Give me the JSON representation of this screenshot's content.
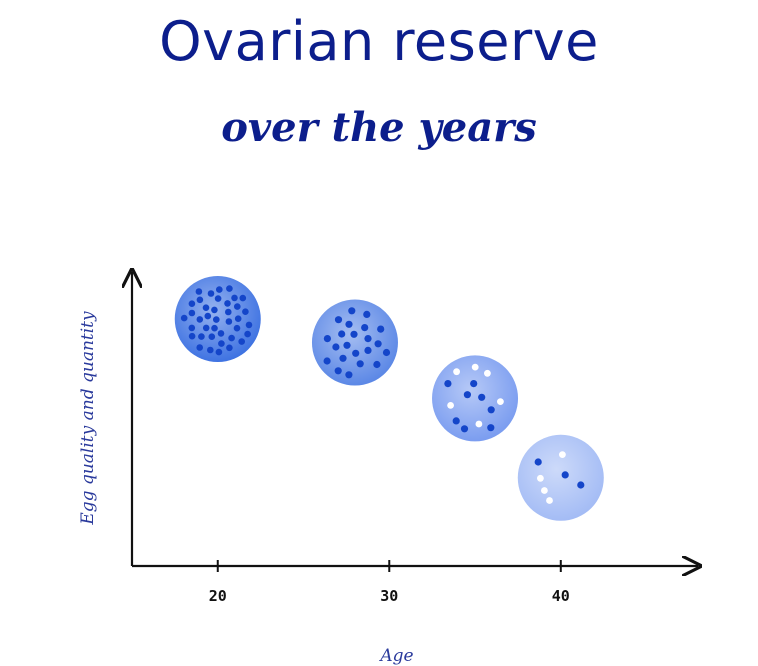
{
  "title": "Ovarian reserve",
  "subtitle": "over the years",
  "chart_data": {
    "type": "scatter",
    "title": "Ovarian reserve",
    "subtitle": "over the years",
    "xlabel": "Age",
    "ylabel": "Egg quality and quantity",
    "x_ticks": [
      "20",
      "30",
      "40"
    ],
    "xlim": [
      15,
      48
    ],
    "ylim": [
      0,
      10
    ],
    "grid": false,
    "legend": "none",
    "points": [
      {
        "x": 20,
        "y": 8.4,
        "dark_dots": 40,
        "light_dots": 0,
        "shade": "#3f73e2"
      },
      {
        "x": 28,
        "y": 7.6,
        "dark_dots": 22,
        "light_dots": 0,
        "shade": "#5c88e6"
      },
      {
        "x": 35,
        "y": 5.7,
        "dark_dots": 8,
        "light_dots": 6,
        "shade": "#7b9df0"
      },
      {
        "x": 40,
        "y": 3.0,
        "dark_dots": 3,
        "light_dots": 4,
        "shade": "#a4bcf5"
      }
    ],
    "colors": {
      "ink": "#111111",
      "title": "#0c1e8c",
      "dark_dot": "#1445c9",
      "light_dot": "#ffffff"
    }
  }
}
